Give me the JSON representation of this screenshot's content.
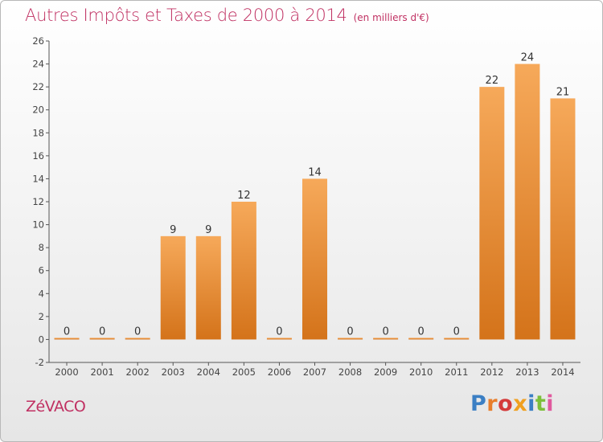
{
  "title": "Autres Impôts et Taxes de 2000 à 2014",
  "subtitle": "(en milliers d'€)",
  "commune": "ZéVACO",
  "logo": {
    "text": "Proxiti",
    "letters": [
      "P",
      "r",
      "o",
      "x",
      "i",
      "t",
      "i"
    ],
    "colors": [
      "#3b7fc4",
      "#e87e2c",
      "#d43a3a",
      "#f0a020",
      "#3b7fc4",
      "#7cbf3a",
      "#e05a9e"
    ]
  },
  "colors": {
    "bar_top": "#f6a95a",
    "bar_bottom": "#d4731a",
    "title": "#c03062"
  },
  "chart_data": {
    "type": "bar",
    "title": "Autres Impôts et Taxes de 2000 à 2014",
    "subtitle": "(en milliers d'€)",
    "categories": [
      "2000",
      "2001",
      "2002",
      "2003",
      "2004",
      "2005",
      "2006",
      "2007",
      "2008",
      "2009",
      "2010",
      "2011",
      "2012",
      "2013",
      "2014"
    ],
    "values": [
      0,
      0,
      0,
      9,
      9,
      12,
      0,
      14,
      0,
      0,
      0,
      0,
      22,
      24,
      21
    ],
    "data_labels": [
      "0",
      "0",
      "0",
      "9",
      "9",
      "12",
      "0",
      "14",
      "0",
      "0",
      "0",
      "0",
      "22",
      "24",
      "21"
    ],
    "ylim": [
      -2,
      26
    ],
    "yticks": [
      -2,
      0,
      2,
      4,
      6,
      8,
      10,
      12,
      14,
      16,
      18,
      20,
      22,
      24,
      26
    ],
    "ytick_labels": [
      "-2",
      "0",
      "2",
      "4",
      "6",
      "8",
      "10",
      "12",
      "14",
      "16",
      "18",
      "20",
      "22",
      "24",
      "26"
    ],
    "xlabel": "",
    "ylabel": "",
    "grid": false
  }
}
